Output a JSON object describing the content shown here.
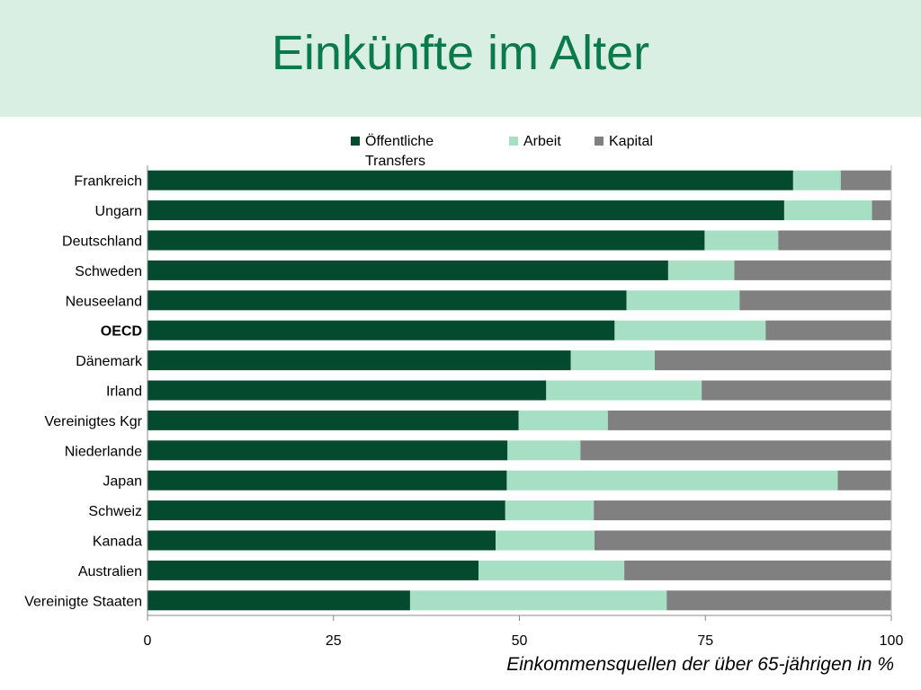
{
  "title": "Einkünfte im Alter",
  "footnote": "Einkommensquellen der über 65-jährigen in %",
  "chart_data": {
    "type": "bar",
    "orientation": "horizontal",
    "stacked": true,
    "categories": [
      "Frankreich",
      "Ungarn",
      "Deutschland",
      "Schweden",
      "Neuseeland",
      "OECD",
      "Dänemark",
      "Irland",
      "Vereinigtes Kgr",
      "Niederlande",
      "Japan",
      "Schweiz",
      "Kanada",
      "Australien",
      "Vereinigte Staaten"
    ],
    "highlight_category": "OECD",
    "series": [
      {
        "name": "Öffentliche Transfers",
        "color": "#044a2e",
        "values": [
          86.8,
          85.6,
          74.9,
          70.0,
          64.4,
          62.8,
          56.9,
          53.6,
          49.9,
          48.4,
          48.3,
          48.1,
          46.8,
          44.5,
          35.3
        ]
      },
      {
        "name": "Arbeit",
        "color": "#a6dfc3",
        "values": [
          6.4,
          11.8,
          9.9,
          8.9,
          15.2,
          20.3,
          11.3,
          20.9,
          12.0,
          9.8,
          44.5,
          11.9,
          13.3,
          19.6,
          34.5
        ]
      },
      {
        "name": "Kapital",
        "color": "#808080",
        "values": [
          6.8,
          2.6,
          15.2,
          21.1,
          20.4,
          16.9,
          31.8,
          25.5,
          38.1,
          41.8,
          7.2,
          40.0,
          39.9,
          35.9,
          30.2
        ]
      }
    ],
    "xlim": [
      0,
      100
    ],
    "xticks": [
      0,
      25,
      50,
      75,
      100
    ],
    "xlabel": "",
    "ylabel": "",
    "legend_position": "top",
    "grid": false
  }
}
